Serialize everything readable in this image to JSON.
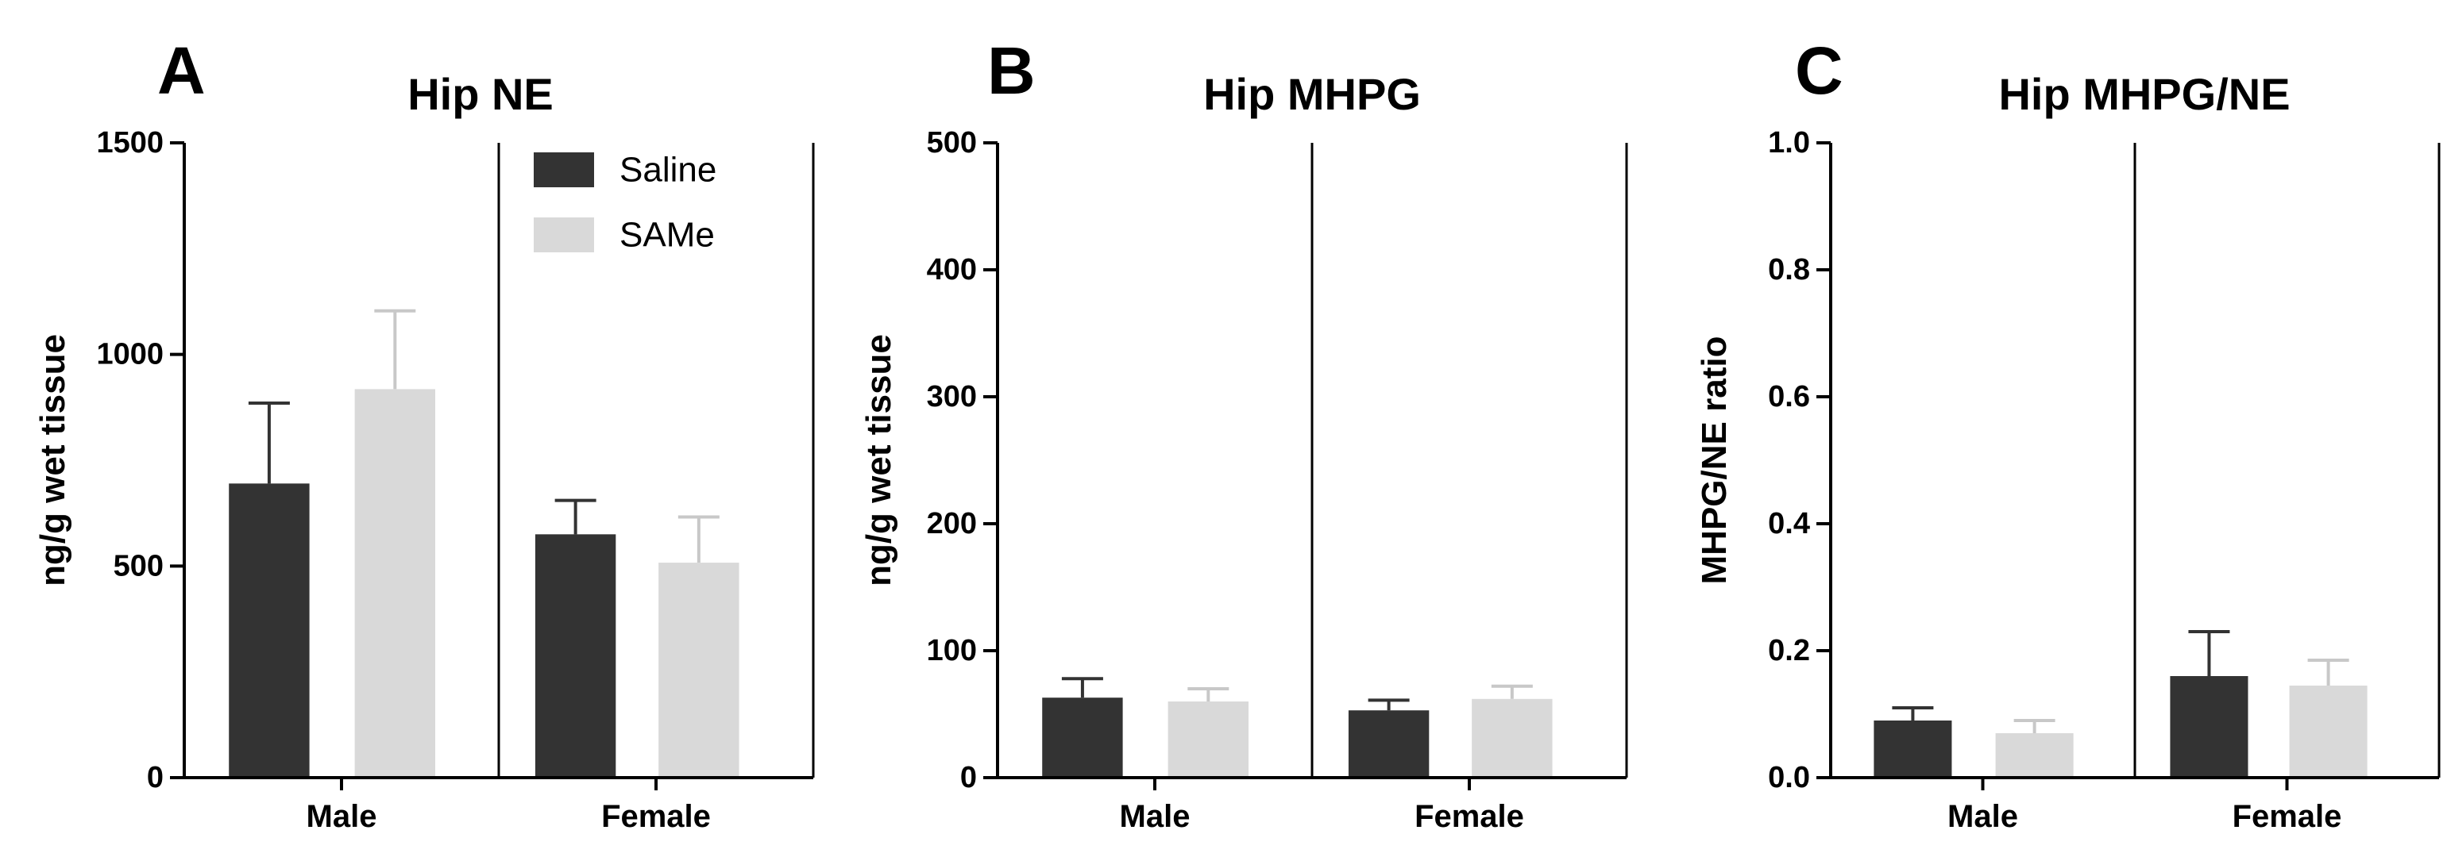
{
  "chart_data": [
    {
      "type": "bar",
      "panel": "A",
      "title": "Hip NE",
      "ylabel": "ng/g wet tissue",
      "xlabel": "",
      "categories": [
        "Male",
        "Female"
      ],
      "ylim": [
        0,
        1500
      ],
      "yticks": [
        0,
        500,
        1000,
        1500
      ],
      "legend": {
        "position": "top-right",
        "entries": [
          "Saline",
          "SAMe"
        ]
      },
      "series": [
        {
          "name": "Saline",
          "color": "#333333",
          "values": [
            695,
            575
          ],
          "errors": [
            190,
            80
          ]
        },
        {
          "name": "SAMe",
          "color": "#d9d9d9",
          "values": [
            918,
            508
          ],
          "errors": [
            185,
            108
          ]
        }
      ]
    },
    {
      "type": "bar",
      "panel": "B",
      "title": "Hip MHPG",
      "ylabel": "ng/g wet tissue",
      "xlabel": "",
      "categories": [
        "Male",
        "Female"
      ],
      "ylim": [
        0,
        500
      ],
      "yticks": [
        0,
        100,
        200,
        300,
        400,
        500
      ],
      "series": [
        {
          "name": "Saline",
          "color": "#333333",
          "values": [
            63,
            53
          ],
          "errors": [
            15,
            8
          ]
        },
        {
          "name": "SAMe",
          "color": "#d9d9d9",
          "values": [
            60,
            62
          ],
          "errors": [
            10,
            10
          ]
        }
      ]
    },
    {
      "type": "bar",
      "panel": "C",
      "title": "Hip MHPG/NE",
      "ylabel": "MHPG/NE ratio",
      "xlabel": "",
      "categories": [
        "Male",
        "Female"
      ],
      "ylim": [
        0,
        1.0
      ],
      "yticks": [
        "0.0",
        "0.2",
        "0.4",
        "0.6",
        "0.8",
        "1.0"
      ],
      "series": [
        {
          "name": "Saline",
          "color": "#333333",
          "values": [
            0.09,
            0.16
          ],
          "errors": [
            0.02,
            0.07
          ]
        },
        {
          "name": "SAMe",
          "color": "#d9d9d9",
          "values": [
            0.07,
            0.145
          ],
          "errors": [
            0.02,
            0.04
          ]
        }
      ]
    }
  ]
}
